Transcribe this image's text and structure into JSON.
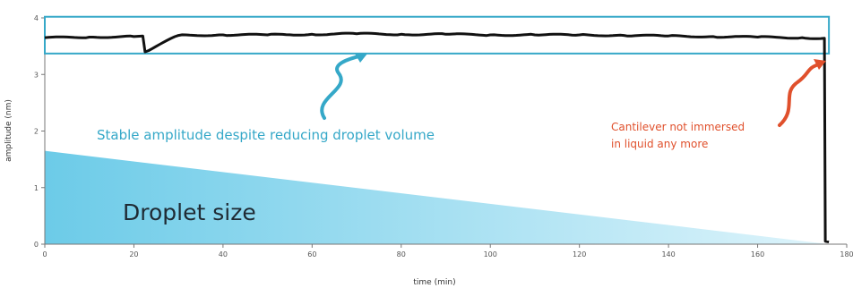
{
  "chart_data": {
    "type": "line",
    "title": "",
    "xlabel": "time (min)",
    "ylabel": "amplitude (nm)",
    "xlim": [
      0,
      180
    ],
    "ylim": [
      0,
      4
    ],
    "x_ticks": [
      0,
      20,
      40,
      60,
      80,
      100,
      120,
      140,
      160,
      180
    ],
    "y_ticks": [
      0,
      1,
      2,
      3,
      4
    ],
    "x_tick_labels": [
      "0",
      "20",
      "40",
      "60",
      "80",
      "100",
      "120",
      "140",
      "160",
      "180"
    ],
    "y_tick_labels": [
      "0",
      "1",
      "2",
      "3",
      "4"
    ],
    "grid": false,
    "series": [
      {
        "x": [
          0,
          10,
          20,
          22,
          22.5,
          30,
          40,
          50,
          60,
          70,
          80,
          90,
          100,
          110,
          120,
          130,
          140,
          150,
          160,
          170,
          175,
          175.2,
          176
        ],
        "y": [
          3.65,
          3.66,
          3.67,
          3.68,
          3.4,
          3.69,
          3.7,
          3.7,
          3.71,
          3.72,
          3.71,
          3.71,
          3.7,
          3.7,
          3.7,
          3.69,
          3.68,
          3.67,
          3.66,
          3.65,
          3.64,
          0.05,
          0.04
        ],
        "color": "#111111"
      }
    ],
    "droplet_area": {
      "x": [
        0,
        176
      ],
      "y": [
        1.65,
        0
      ],
      "color_start": "#6ccbe8",
      "color_end": "#def4fb"
    },
    "highlight_box": {
      "x_range": [
        0,
        176
      ],
      "y_range": [
        3.37,
        4.02
      ],
      "color": "#35a8c8"
    },
    "annotations": [
      {
        "text": "Stable amplitude despite reducing droplet volume",
        "color": "#35a8c8"
      },
      {
        "text": "Cantilever not immersed",
        "color": "#e0502c"
      },
      {
        "text": "in liquid any more",
        "color": "#e0502c"
      },
      {
        "text": "Droplet size",
        "color": "#1f2a33"
      }
    ]
  }
}
